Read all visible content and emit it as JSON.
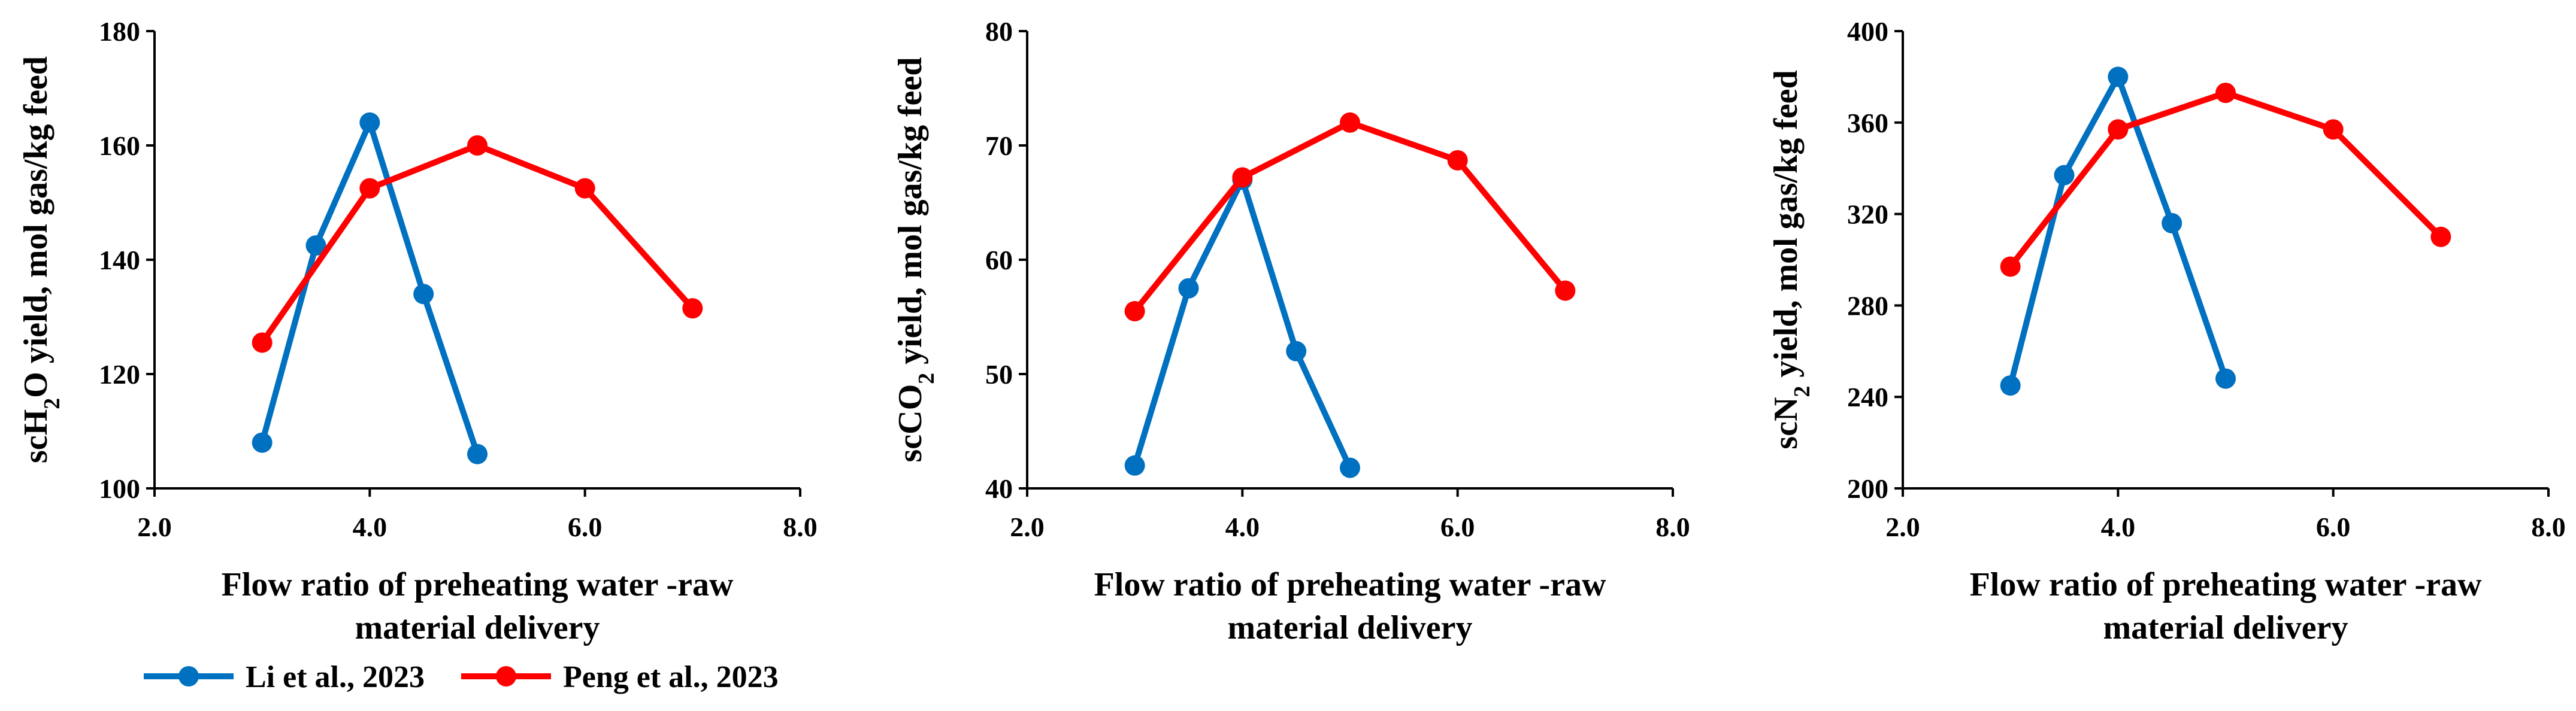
{
  "colors": {
    "li": "#0070C0",
    "peng": "#FF0000"
  },
  "legend": [
    {
      "name": "Li et al., 2023",
      "series_index": 0
    },
    {
      "name": "Peng et al., 2023",
      "series_index": 1
    }
  ],
  "chart_data": [
    {
      "type": "line",
      "ylabel_parts": [
        {
          "text": "scH",
          "sub": false
        },
        {
          "text": "2",
          "sub": true
        },
        {
          "text": "O yield, mol gas/kg feed",
          "sub": false
        }
      ],
      "xlabel_lines": [
        "Flow ratio of preheating water -raw",
        "material delivery"
      ],
      "xlim": [
        2.0,
        8.0
      ],
      "xticks": [
        2.0,
        4.0,
        6.0,
        8.0
      ],
      "xtick_labels": [
        "2.0",
        "4.0",
        "6.0",
        "8.0"
      ],
      "ylim": [
        100,
        180
      ],
      "yticks": [
        100,
        120,
        140,
        160,
        180
      ],
      "ytick_labels": [
        "100",
        "120",
        "140",
        "160",
        "180"
      ],
      "series": [
        {
          "name": "Li et al., 2023",
          "color": "#0070C0",
          "x": [
            3.0,
            3.5,
            4.0,
            4.5,
            5.0
          ],
          "y": [
            108,
            142.5,
            164,
            134,
            106
          ]
        },
        {
          "name": "Peng et al., 2023",
          "color": "#FF0000",
          "x": [
            3.0,
            4.0,
            5.0,
            6.0,
            7.0
          ],
          "y": [
            125.5,
            152.5,
            160,
            152.5,
            131.5
          ]
        }
      ]
    },
    {
      "type": "line",
      "ylabel_parts": [
        {
          "text": "scCO",
          "sub": false
        },
        {
          "text": "2",
          "sub": true
        },
        {
          "text": " yield, mol gas/kg feed",
          "sub": false
        }
      ],
      "xlabel_lines": [
        "Flow ratio of preheating water -raw",
        "material delivery"
      ],
      "xlim": [
        2.0,
        8.0
      ],
      "xticks": [
        2.0,
        4.0,
        6.0,
        8.0
      ],
      "xtick_labels": [
        "2.0",
        "4.0",
        "6.0",
        "8.0"
      ],
      "ylim": [
        40,
        80
      ],
      "yticks": [
        40,
        50,
        60,
        70,
        80
      ],
      "ytick_labels": [
        "40",
        "50",
        "60",
        "70",
        "80"
      ],
      "series": [
        {
          "name": "Li et al., 2023",
          "color": "#0070C0",
          "x": [
            3.0,
            3.5,
            4.0,
            4.5,
            5.0
          ],
          "y": [
            42,
            57.5,
            67,
            52,
            41.8
          ]
        },
        {
          "name": "Peng et al., 2023",
          "color": "#FF0000",
          "x": [
            3.0,
            4.0,
            5.0,
            6.0,
            7.0
          ],
          "y": [
            55.5,
            67.2,
            72,
            68.7,
            57.3
          ]
        }
      ]
    },
    {
      "type": "line",
      "ylabel_parts": [
        {
          "text": "scN",
          "sub": false
        },
        {
          "text": "2",
          "sub": true
        },
        {
          "text": " yield, mol gas/kg feed",
          "sub": false
        }
      ],
      "xlabel_lines": [
        "Flow ratio of preheating water -raw",
        "material delivery"
      ],
      "xlim": [
        2.0,
        8.0
      ],
      "xticks": [
        2.0,
        4.0,
        6.0,
        8.0
      ],
      "xtick_labels": [
        "2.0",
        "4.0",
        "6.0",
        "8.0"
      ],
      "ylim": [
        200,
        400
      ],
      "yticks": [
        200,
        240,
        280,
        320,
        360,
        400
      ],
      "ytick_labels": [
        "200",
        "240",
        "280",
        "320",
        "360",
        "400"
      ],
      "series": [
        {
          "name": "Li et al., 2023",
          "color": "#0070C0",
          "x": [
            3.0,
            3.5,
            4.0,
            4.5,
            5.0
          ],
          "y": [
            245,
            337,
            380,
            316,
            248
          ]
        },
        {
          "name": "Peng et al., 2023",
          "color": "#FF0000",
          "x": [
            3.0,
            4.0,
            5.0,
            6.0,
            7.0
          ],
          "y": [
            297,
            357,
            373,
            357,
            310
          ]
        }
      ]
    }
  ]
}
